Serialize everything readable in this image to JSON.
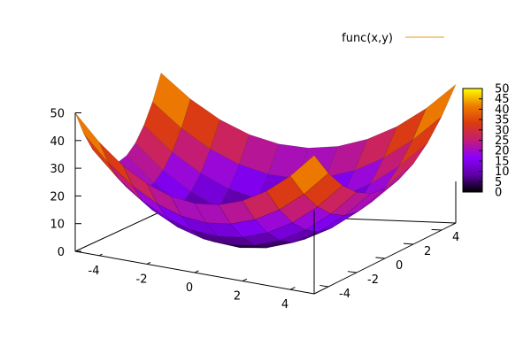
{
  "chart_data": {
    "type": "surface3d",
    "function": "x^2 + y^2",
    "legend": [
      {
        "name": "func(x,y)",
        "color": "#e69a1e"
      }
    ],
    "xrange": [
      -5,
      5
    ],
    "yrange": [
      -5,
      5
    ],
    "zrange": [
      0,
      50
    ],
    "x_ticks": [
      "-4",
      "-2",
      "0",
      "2",
      "4"
    ],
    "x_tick_values": [
      -4,
      -2,
      0,
      2,
      4
    ],
    "y_ticks": [
      "-4",
      "-2",
      "0",
      "2",
      "4"
    ],
    "y_tick_values": [
      -4,
      -2,
      0,
      2,
      4
    ],
    "z_ticks": [
      "0",
      "10",
      "20",
      "30",
      "40",
      "50"
    ],
    "z_tick_values": [
      0,
      10,
      20,
      30,
      40,
      50
    ],
    "x_grid": [
      -5,
      -4,
      -3,
      -2,
      -1,
      0,
      1,
      2,
      3,
      4,
      5
    ],
    "y_grid": [
      -5,
      -4,
      -3,
      -2,
      -1,
      0,
      1,
      2,
      3,
      4,
      5
    ],
    "colorbox": {
      "min": 0,
      "max": 50,
      "ticks": [
        "0",
        "5",
        "10",
        "15",
        "20",
        "25",
        "30",
        "35",
        "40",
        "45",
        "50"
      ],
      "tick_values": [
        0,
        5,
        10,
        15,
        20,
        25,
        30,
        35,
        40,
        45,
        50
      ],
      "palette": [
        "#000000",
        "#5f00a6",
        "#8a00ff",
        "#c41c75",
        "#db3b10",
        "#ee7d00",
        "#ffff00"
      ]
    },
    "grid": false
  }
}
